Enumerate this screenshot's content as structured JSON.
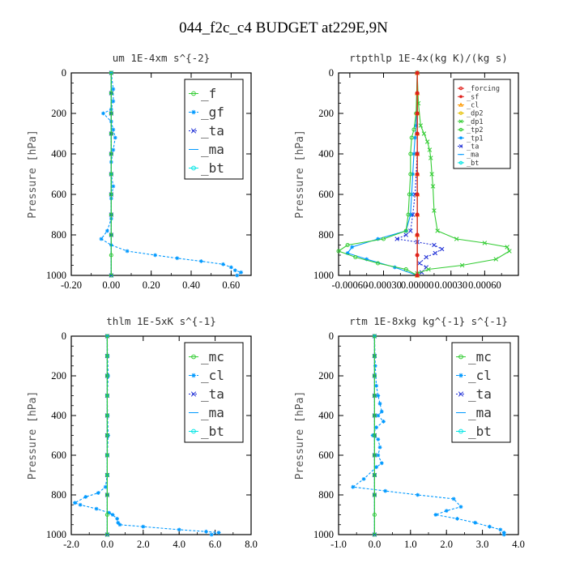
{
  "title": "044_f2c_c4  BUDGET at229E,9N",
  "colors": {
    "green": "#33cc33",
    "lightblue": "#0099ff",
    "blue": "#1f2fd6",
    "red": "#e0201b",
    "orange": "#ff9900",
    "yellow": "#e6c000",
    "cyan": "#00e5e5",
    "darkgreen": "#008000"
  },
  "chart_data": [
    {
      "type": "line",
      "title": "um  1E-4xm s^{-2}",
      "ylabel": "Pressure [hPa]",
      "xlim": [
        -0.2,
        0.7
      ],
      "ylim": [
        0,
        1000
      ],
      "y_inverted": true,
      "xticks": [
        "-0.20",
        "0.00",
        "0.20",
        "0.40",
        "0.60"
      ],
      "xtick_values": [
        -0.2,
        0.0,
        0.2,
        0.4,
        0.6
      ],
      "yticks": [
        "0",
        "200",
        "400",
        "600",
        "800",
        "1000"
      ],
      "ytick_values": [
        0,
        200,
        400,
        600,
        800,
        1000
      ],
      "legend_position": "top-right",
      "legend_size": "large",
      "series": [
        {
          "name": "_f",
          "color": "#33cc33",
          "marker": "o",
          "dash": "",
          "x": [
            0,
            0,
            0,
            0,
            0,
            0,
            0,
            0,
            0,
            0,
            0
          ],
          "y": [
            0,
            100,
            200,
            300,
            400,
            500,
            600,
            700,
            800,
            900,
            1000
          ]
        },
        {
          "name": "_gf",
          "color": "#0099ff",
          "marker": "*",
          "dash": "3,2",
          "x": [
            0.0,
            0.01,
            0.01,
            0.0,
            -0.04,
            0.0,
            0.01,
            0.02,
            0.01,
            0.0,
            0.0,
            0.01,
            0.0,
            0.0,
            -0.02,
            -0.05,
            0.0,
            0.08,
            0.22,
            0.33,
            0.45,
            0.56,
            0.6,
            0.62,
            0.65,
            0.63
          ],
          "y": [
            0,
            80,
            140,
            180,
            200,
            240,
            280,
            320,
            380,
            440,
            500,
            560,
            620,
            720,
            780,
            820,
            850,
            880,
            900,
            915,
            930,
            945,
            960,
            975,
            985,
            1000
          ]
        },
        {
          "name": "_ta",
          "color": "#1f2fd6",
          "marker": "x",
          "dash": "2,2",
          "x": [
            0,
            0,
            0,
            0,
            0,
            0,
            0,
            0,
            0,
            0
          ],
          "y": [
            0,
            100,
            200,
            300,
            400,
            500,
            600,
            700,
            800,
            1000
          ]
        },
        {
          "name": "_ma",
          "color": "#0099ff",
          "marker": "-",
          "dash": "",
          "x": [
            0,
            0,
            0,
            0,
            0,
            0,
            0,
            0,
            0,
            0
          ],
          "y": [
            0,
            100,
            200,
            300,
            400,
            500,
            600,
            700,
            800,
            1000
          ]
        },
        {
          "name": "_bt",
          "color": "#00e5e5",
          "marker": "o",
          "dash": "",
          "x": [
            0,
            0,
            0,
            0,
            0,
            0,
            0,
            0,
            0,
            0
          ],
          "y": [
            0,
            100,
            200,
            300,
            400,
            500,
            600,
            700,
            800,
            1000
          ]
        }
      ]
    },
    {
      "type": "line",
      "title": "rtpthlp  1E-4x(kg K)/(kg s)",
      "ylabel": "Pressure [hPa]",
      "xlim": [
        -0.0007,
        0.0009
      ],
      "ylim": [
        0,
        1000
      ],
      "y_inverted": true,
      "xticks": [
        "-0.00060",
        "-0.00030",
        "0.00000",
        "0.00030",
        "0.00060"
      ],
      "xtick_values": [
        -0.0006,
        -0.0003,
        0.0,
        0.0003,
        0.0006
      ],
      "yticks": [
        "0",
        "200",
        "400",
        "600",
        "800",
        "1000"
      ],
      "ytick_values": [
        0,
        200,
        400,
        600,
        800,
        1000
      ],
      "legend_position": "top-right",
      "legend_size": "small",
      "series": [
        {
          "name": "_forcing",
          "color": "#e0201b",
          "marker": "o",
          "dash": "",
          "x": [
            0,
            0,
            0,
            0,
            0,
            0,
            0,
            0,
            0,
            0,
            0
          ],
          "y": [
            0,
            100,
            200,
            300,
            400,
            500,
            600,
            700,
            800,
            900,
            1000
          ]
        },
        {
          "name": "_sf",
          "color": "#e0201b",
          "marker": "*",
          "dash": "",
          "x": [
            0,
            0,
            0,
            0,
            0,
            0,
            0,
            0,
            0,
            0,
            0
          ],
          "y": [
            0,
            100,
            200,
            300,
            400,
            500,
            600,
            700,
            800,
            900,
            1000
          ]
        },
        {
          "name": "_cl",
          "color": "#ff9900",
          "marker": "^",
          "dash": "",
          "x": [
            0,
            0,
            0,
            0,
            0,
            0,
            0,
            0,
            0,
            0
          ],
          "y": [
            0,
            100,
            200,
            300,
            400,
            500,
            600,
            700,
            800,
            1000
          ]
        },
        {
          "name": "_dp2",
          "color": "#e6c000",
          "marker": "o",
          "dash": "",
          "x": [
            0,
            0,
            0,
            0,
            0,
            0,
            0,
            0,
            0,
            0
          ],
          "y": [
            0,
            100,
            200,
            300,
            400,
            500,
            600,
            700,
            800,
            1000
          ]
        },
        {
          "name": "_dp1",
          "color": "#33cc33",
          "marker": "x",
          "dash": "",
          "x": [
            0.0,
            1e-05,
            3e-05,
            6e-05,
            9e-05,
            0.00011,
            0.00012,
            0.00013,
            0.00014,
            0.00015,
            0.00018,
            0.00035,
            0.0006,
            0.0008,
            0.00082,
            0.0007,
            0.0004,
            0.0001,
            0.0,
            0.0
          ],
          "y": [
            0,
            150,
            260,
            300,
            340,
            380,
            420,
            500,
            560,
            680,
            780,
            820,
            840,
            860,
            880,
            920,
            950,
            970,
            990,
            1000
          ]
        },
        {
          "name": "_tp2",
          "color": "#33cc33",
          "marker": "o",
          "dash": "",
          "x": [
            0.0,
            -1e-05,
            -3e-05,
            -5e-05,
            -6e-05,
            -6e-05,
            -7e-05,
            -8e-05,
            -0.0001,
            -0.0003,
            -0.00062,
            -0.0007,
            -0.00055,
            -0.00035,
            -0.0001,
            0.0
          ],
          "y": [
            0,
            200,
            280,
            320,
            400,
            500,
            600,
            700,
            780,
            820,
            850,
            880,
            910,
            940,
            970,
            1000
          ]
        },
        {
          "name": "_tp1",
          "color": "#0099ff",
          "marker": "*",
          "dash": "",
          "x": [
            0.0,
            -1e-05,
            -2e-05,
            -3e-05,
            -4e-05,
            -5e-05,
            -6e-05,
            -0.0001,
            -0.00035,
            -0.00058,
            -0.00062,
            -0.00045,
            -0.0002,
            0.0
          ],
          "y": [
            0,
            260,
            320,
            400,
            500,
            600,
            700,
            780,
            820,
            860,
            890,
            920,
            960,
            1000
          ]
        },
        {
          "name": "_ta",
          "color": "#1f2fd6",
          "marker": "x",
          "dash": "2,2",
          "x": [
            0.0,
            0.0,
            -2e-05,
            -4e-05,
            -6e-05,
            -0.0001,
            -0.00018,
            0.0,
            0.00015,
            0.00022,
            0.00016,
            8e-05,
            2e-05,
            8e-05,
            4e-05,
            0.0
          ],
          "y": [
            0,
            400,
            600,
            700,
            780,
            800,
            820,
            835,
            850,
            870,
            890,
            910,
            940,
            960,
            985,
            1000
          ]
        },
        {
          "name": "_ma",
          "color": "#0099ff",
          "marker": "-",
          "dash": "",
          "x": [
            0,
            0,
            0,
            0,
            0,
            0,
            0,
            0,
            0,
            0
          ],
          "y": [
            0,
            100,
            200,
            300,
            400,
            500,
            600,
            700,
            800,
            1000
          ]
        },
        {
          "name": "_bt",
          "color": "#00e5e5",
          "marker": "o",
          "dash": "",
          "x": [
            0,
            0,
            0,
            0,
            0,
            0,
            0,
            0,
            0,
            0
          ],
          "y": [
            0,
            100,
            200,
            300,
            400,
            500,
            600,
            700,
            800,
            1000
          ]
        }
      ]
    },
    {
      "type": "line",
      "title": "thlm  1E-5xK s^{-1}",
      "ylabel": "Pressure [hPa]",
      "xlim": [
        -2.0,
        8.0
      ],
      "ylim": [
        0,
        1000
      ],
      "y_inverted": true,
      "xticks": [
        "-2.0",
        "0.0",
        "2.0",
        "4.0",
        "6.0",
        "8.0"
      ],
      "xtick_values": [
        -2.0,
        0.0,
        2.0,
        4.0,
        6.0,
        8.0
      ],
      "yticks": [
        "0",
        "200",
        "400",
        "600",
        "800",
        "1000"
      ],
      "ytick_values": [
        0,
        200,
        400,
        600,
        800,
        1000
      ],
      "legend_position": "top-right",
      "legend_size": "large",
      "series": [
        {
          "name": "_mc",
          "color": "#33cc33",
          "marker": "o",
          "dash": "",
          "x": [
            0,
            0,
            0,
            0,
            0,
            0,
            0,
            0,
            0,
            0,
            0
          ],
          "y": [
            0,
            100,
            200,
            300,
            400,
            500,
            600,
            700,
            800,
            900,
            1000
          ]
        },
        {
          "name": "_cl",
          "color": "#0099ff",
          "marker": "*",
          "dash": "3,2",
          "x": [
            0.0,
            0.02,
            0.05,
            0.0,
            0.02,
            0.05,
            0.0,
            0.0,
            -0.1,
            -0.5,
            -1.2,
            -1.8,
            -1.5,
            -0.6,
            0.1,
            0.3,
            0.55,
            0.6,
            0.7,
            2.0,
            4.0,
            5.5,
            6.2,
            5.8
          ],
          "y": [
            0,
            100,
            200,
            300,
            400,
            500,
            600,
            700,
            760,
            790,
            810,
            840,
            850,
            870,
            890,
            900,
            920,
            940,
            950,
            960,
            975,
            985,
            990,
            1000
          ]
        },
        {
          "name": "_ta",
          "color": "#1f2fd6",
          "marker": "x",
          "dash": "2,2",
          "x": [
            0,
            0,
            0,
            0,
            0,
            0,
            0,
            0,
            0,
            0
          ],
          "y": [
            0,
            100,
            200,
            300,
            400,
            500,
            600,
            700,
            800,
            1000
          ]
        },
        {
          "name": "_ma",
          "color": "#0099ff",
          "marker": "-",
          "dash": "",
          "x": [
            0,
            0,
            0,
            0,
            0,
            0,
            0,
            0,
            0,
            0
          ],
          "y": [
            0,
            100,
            200,
            300,
            400,
            500,
            600,
            700,
            800,
            1000
          ]
        },
        {
          "name": "_bt",
          "color": "#00e5e5",
          "marker": "o",
          "dash": "",
          "x": [
            0,
            0,
            0,
            0,
            0,
            0,
            0,
            0,
            0,
            0
          ],
          "y": [
            0,
            100,
            200,
            300,
            400,
            500,
            600,
            700,
            800,
            1000
          ]
        }
      ]
    },
    {
      "type": "line",
      "title": "rtm  1E-8xkg kg^{-1} s^{-1}",
      "ylabel": "Pressure [hPa]",
      "xlim": [
        -1.0,
        4.0
      ],
      "ylim": [
        0,
        1000
      ],
      "y_inverted": true,
      "xticks": [
        "-1.0",
        "0.0",
        "1.0",
        "2.0",
        "3.0",
        "4.0"
      ],
      "xtick_values": [
        -1.0,
        0.0,
        1.0,
        2.0,
        3.0,
        4.0
      ],
      "yticks": [
        "0",
        "200",
        "400",
        "600",
        "800",
        "1000"
      ],
      "ytick_values": [
        0,
        200,
        400,
        600,
        800,
        1000
      ],
      "legend_position": "top-right",
      "legend_size": "large",
      "series": [
        {
          "name": "_mc",
          "color": "#33cc33",
          "marker": "o",
          "dash": "",
          "x": [
            0,
            0,
            0,
            0,
            0,
            0,
            0,
            0,
            0,
            0,
            0
          ],
          "y": [
            0,
            100,
            200,
            300,
            400,
            500,
            600,
            700,
            800,
            900,
            1000
          ]
        },
        {
          "name": "_cl",
          "color": "#0099ff",
          "marker": "*",
          "dash": "3,2",
          "x": [
            0.0,
            0.02,
            0.05,
            0.1,
            0.15,
            0.2,
            0.1,
            0.25,
            0.05,
            -0.05,
            0.1,
            0.15,
            0.1,
            0.2,
            0.05,
            -0.3,
            -0.6,
            0.3,
            1.2,
            2.2,
            2.4,
            2.0,
            1.7,
            2.3,
            2.8,
            3.2,
            3.5,
            3.6,
            3.6
          ],
          "y": [
            0,
            150,
            250,
            300,
            340,
            380,
            400,
            430,
            460,
            500,
            520,
            560,
            600,
            640,
            660,
            720,
            760,
            780,
            800,
            820,
            860,
            880,
            900,
            920,
            940,
            960,
            975,
            990,
            1000
          ]
        },
        {
          "name": "_ta",
          "color": "#1f2fd6",
          "marker": "x",
          "dash": "2,2",
          "x": [
            0,
            0,
            0,
            0,
            0,
            0,
            0,
            0,
            0,
            0
          ],
          "y": [
            0,
            100,
            200,
            300,
            400,
            500,
            600,
            700,
            800,
            1000
          ]
        },
        {
          "name": "_ma",
          "color": "#0099ff",
          "marker": "-",
          "dash": "",
          "x": [
            0,
            0,
            0,
            0,
            0,
            0,
            0,
            0,
            0,
            0
          ],
          "y": [
            0,
            100,
            200,
            300,
            400,
            500,
            600,
            700,
            800,
            1000
          ]
        },
        {
          "name": "_bt",
          "color": "#00e5e5",
          "marker": "o",
          "dash": "",
          "x": [
            0,
            0,
            0,
            0,
            0,
            0,
            0,
            0,
            0,
            0
          ],
          "y": [
            0,
            100,
            200,
            300,
            400,
            500,
            600,
            700,
            800,
            1000
          ]
        }
      ]
    }
  ]
}
